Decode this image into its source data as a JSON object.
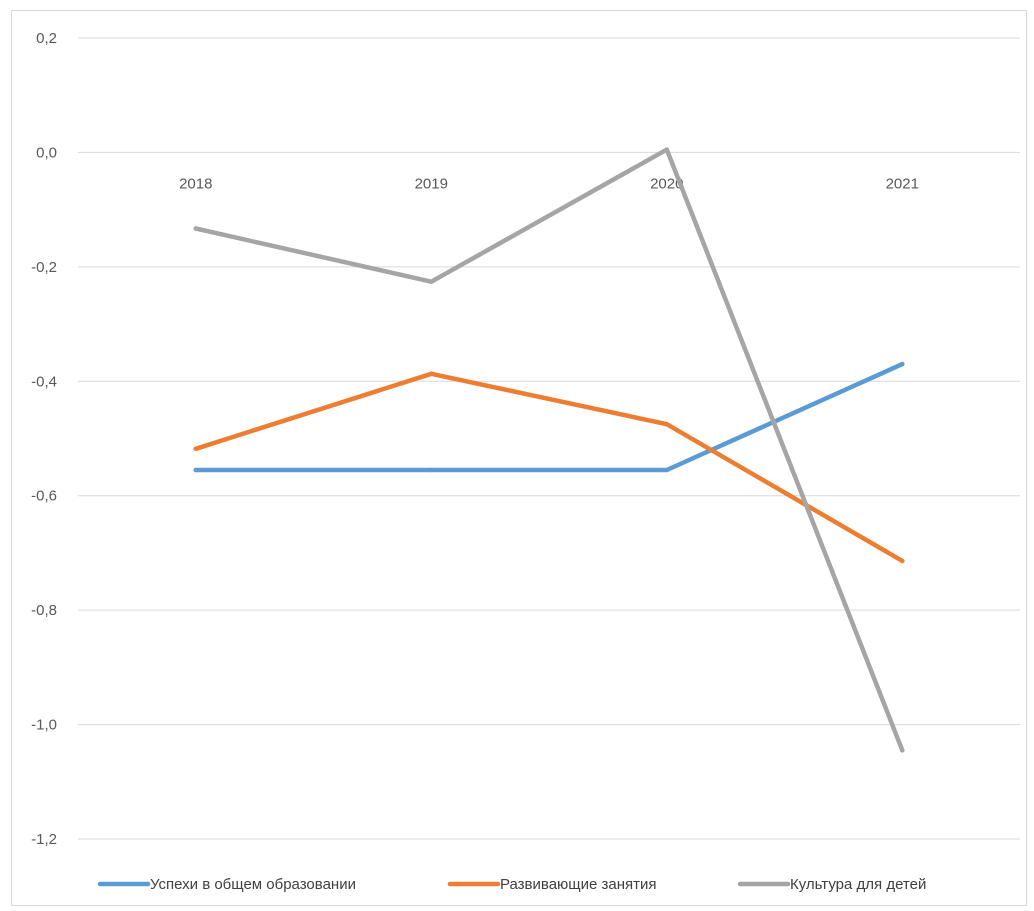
{
  "chart_data": {
    "type": "line",
    "categories": [
      "2018",
      "2019",
      "2020",
      "2021"
    ],
    "series": [
      {
        "name": "Успехи в общем образовании",
        "color": "#5b9bd5",
        "values": [
          -0.555,
          -0.555,
          -0.555,
          -0.37
        ]
      },
      {
        "name": "Развивающие занятия",
        "color": "#ed7d31",
        "values": [
          -0.518,
          -0.387,
          -0.475,
          -0.714
        ]
      },
      {
        "name": "Культура для детей",
        "color": "#a5a5a5",
        "values": [
          -0.133,
          -0.226,
          0.005,
          -1.045
        ]
      }
    ],
    "ylim": [
      -1.2,
      0.2
    ],
    "y_ticks": [
      0.2,
      0.0,
      -0.2,
      -0.4,
      -0.6,
      -0.8,
      -1.0,
      -1.2
    ],
    "y_tick_labels": [
      "0,2",
      "0,0",
      "-0,2",
      "-0,4",
      "-0,6",
      "-0,8",
      "-1,0",
      "-1,2"
    ],
    "grid": true,
    "category_labels_at": "y=0",
    "legend_position": "bottom",
    "gridline_color": "#d9d9d9",
    "title": "",
    "xlabel": "",
    "ylabel": ""
  }
}
